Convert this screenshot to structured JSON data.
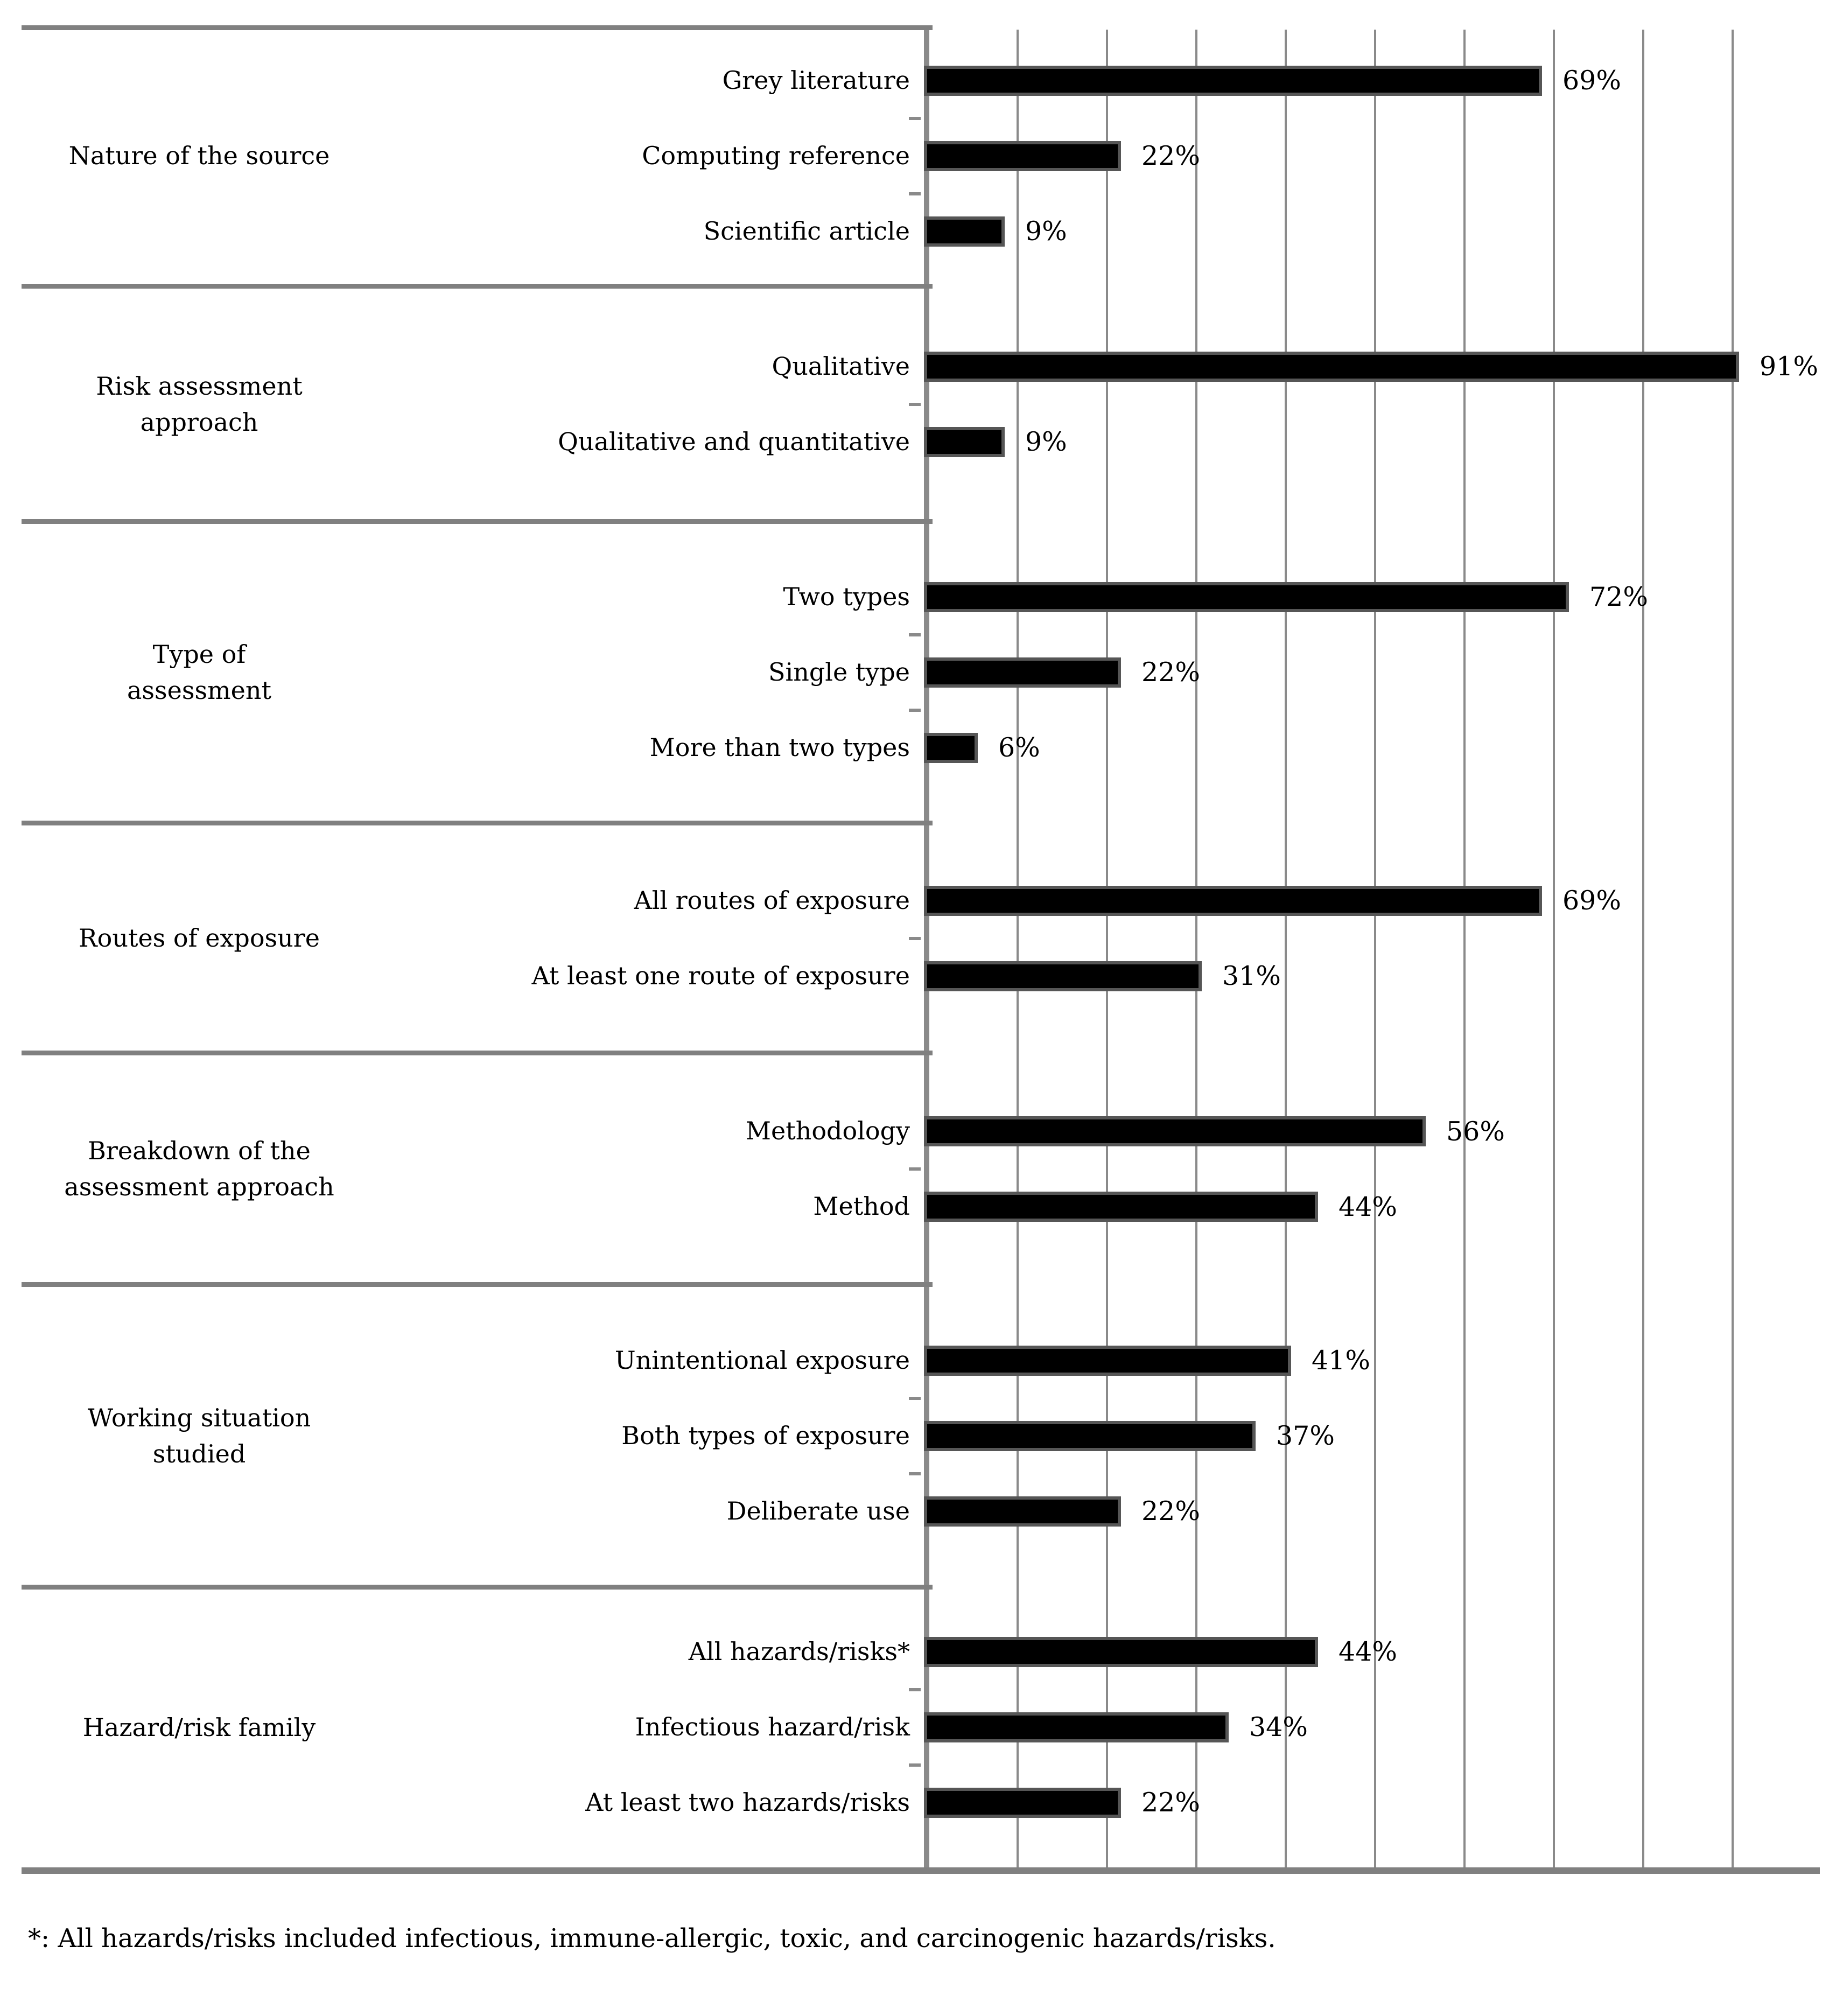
{
  "chart_data": {
    "type": "bar",
    "orientation": "horizontal",
    "title": "",
    "xlabel": "",
    "ylabel": "",
    "xlim": [
      0,
      100
    ],
    "gridline_step_percent": 10,
    "grid": true,
    "unit": "%",
    "groups": [
      {
        "label": "Nature of the source",
        "label_lines": [
          "Nature of the source"
        ],
        "bars": [
          {
            "category": "Grey literature",
            "value": 69,
            "value_label": "69%"
          },
          {
            "category": "Computing reference",
            "value": 22,
            "value_label": "22%"
          },
          {
            "category": "Scientific article",
            "value": 9,
            "value_label": "9%"
          }
        ]
      },
      {
        "label": "Risk assessment approach",
        "label_lines": [
          "Risk assessment",
          "approach"
        ],
        "bars": [
          {
            "category": "Qualitative",
            "value": 91,
            "value_label": "91%"
          },
          {
            "category": "Qualitative and quantitative",
            "value": 9,
            "value_label": "9%"
          }
        ]
      },
      {
        "label": "Type of assessment",
        "label_lines": [
          "Type of",
          "assessment"
        ],
        "bars": [
          {
            "category": "Two types",
            "value": 72,
            "value_label": "72%"
          },
          {
            "category": "Single type",
            "value": 22,
            "value_label": "22%"
          },
          {
            "category": "More than two types",
            "value": 6,
            "value_label": "6%"
          }
        ]
      },
      {
        "label": "Routes of exposure",
        "label_lines": [
          "Routes of exposure"
        ],
        "bars": [
          {
            "category": "All routes of exposure",
            "value": 69,
            "value_label": "69%"
          },
          {
            "category": "At least one route of exposure",
            "value": 31,
            "value_label": "31%"
          }
        ]
      },
      {
        "label": "Breakdown of the assessment approach",
        "label_lines": [
          "Breakdown of the",
          "assessment approach"
        ],
        "bars": [
          {
            "category": "Methodology",
            "value": 56,
            "value_label": "56%"
          },
          {
            "category": "Method",
            "value": 44,
            "value_label": "44%"
          }
        ]
      },
      {
        "label": "Working situation studied",
        "label_lines": [
          "Working situation",
          "studied"
        ],
        "bars": [
          {
            "category": "Unintentional exposure",
            "value": 41,
            "value_label": "41%"
          },
          {
            "category": "Both types of exposure",
            "value": 37,
            "value_label": "37%"
          },
          {
            "category": "Deliberate use",
            "value": 22,
            "value_label": "22%"
          }
        ]
      },
      {
        "label": "Hazard/risk family",
        "label_lines": [
          "Hazard/risk family"
        ],
        "bars": [
          {
            "category": "All hazards/risks*",
            "value": 44,
            "value_label": "44%"
          },
          {
            "category": "Infectious hazard/risk",
            "value": 34,
            "value_label": "34%"
          },
          {
            "category": "At least two hazards/risks",
            "value": 22,
            "value_label": "22%"
          }
        ]
      }
    ],
    "footnote": "*: All hazards/risks included infectious, immune-allergic, toxic, and carcinogenic hazards/risks."
  },
  "colors": {
    "bar_fill": "#000000",
    "bar_border": "#565656",
    "gridline": "#8a8a8a",
    "divider": "#808080",
    "text": "#000000",
    "background": "#ffffff"
  }
}
